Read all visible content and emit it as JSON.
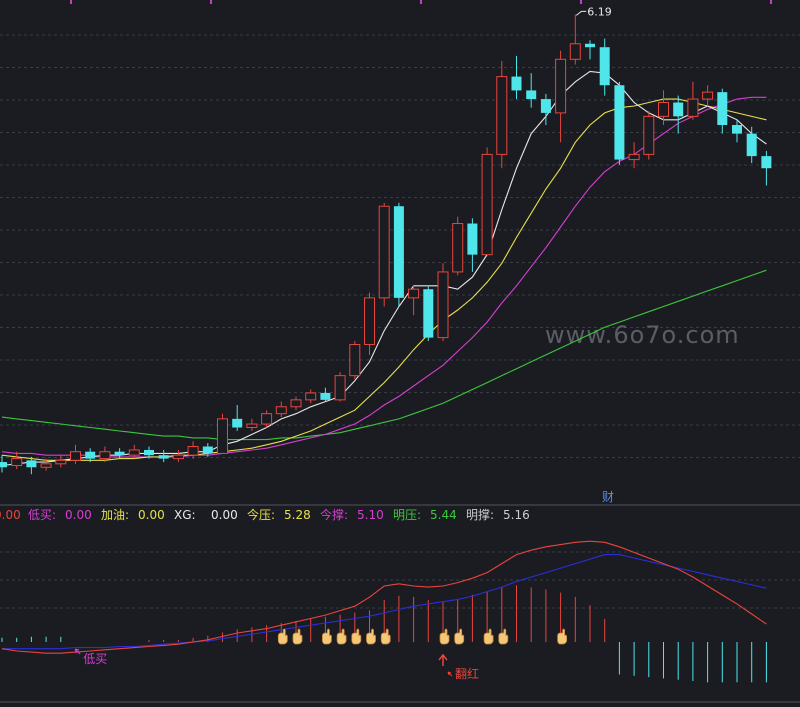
{
  "watermark": "www.6o7o.com",
  "chart_data": [
    {
      "type": "candlestick",
      "name": "",
      "price_range": [
        3.45,
        6.25
      ],
      "high_label": "6.19",
      "event_marker": "财",
      "colors": {
        "up": "#e8453c",
        "down": "#4ee6ea",
        "ma5": "#e8e8e8",
        "ma10": "#e6e04a",
        "ma20": "#d53fd3",
        "ma60": "#3ac73a"
      },
      "candles": [
        [
          3.6,
          3.57,
          3.64,
          3.54
        ],
        [
          3.58,
          3.62,
          3.66,
          3.56
        ],
        [
          3.61,
          3.57,
          3.63,
          3.53
        ],
        [
          3.57,
          3.59,
          3.62,
          3.55
        ],
        [
          3.59,
          3.61,
          3.64,
          3.57
        ],
        [
          3.61,
          3.66,
          3.7,
          3.59
        ],
        [
          3.66,
          3.62,
          3.68,
          3.6
        ],
        [
          3.62,
          3.66,
          3.69,
          3.6
        ],
        [
          3.66,
          3.64,
          3.68,
          3.62
        ],
        [
          3.64,
          3.67,
          3.7,
          3.62
        ],
        [
          3.67,
          3.64,
          3.69,
          3.62
        ],
        [
          3.64,
          3.62,
          3.67,
          3.6
        ],
        [
          3.62,
          3.64,
          3.67,
          3.6
        ],
        [
          3.64,
          3.69,
          3.72,
          3.62
        ],
        [
          3.69,
          3.65,
          3.71,
          3.63
        ],
        [
          3.65,
          3.85,
          3.88,
          3.65
        ],
        [
          3.85,
          3.8,
          3.93,
          3.78
        ],
        [
          3.8,
          3.82,
          3.85,
          3.78
        ],
        [
          3.82,
          3.88,
          3.9,
          3.8
        ],
        [
          3.88,
          3.92,
          3.95,
          3.86
        ],
        [
          3.92,
          3.96,
          3.98,
          3.9
        ],
        [
          3.96,
          4.0,
          4.02,
          3.94
        ],
        [
          4.0,
          3.96,
          4.03,
          3.95
        ],
        [
          3.96,
          4.1,
          4.12,
          3.95
        ],
        [
          4.1,
          4.28,
          4.3,
          4.08
        ],
        [
          4.28,
          4.55,
          4.58,
          4.22
        ],
        [
          4.55,
          5.08,
          5.1,
          4.5
        ],
        [
          5.08,
          4.55,
          5.1,
          4.5
        ],
        [
          4.55,
          4.6,
          4.62,
          4.45
        ],
        [
          4.6,
          4.32,
          4.62,
          4.3
        ],
        [
          4.32,
          4.7,
          4.75,
          4.3
        ],
        [
          4.7,
          4.98,
          5.02,
          4.68
        ],
        [
          4.98,
          4.8,
          5.01,
          4.7
        ],
        [
          4.8,
          5.38,
          5.42,
          4.8
        ],
        [
          5.38,
          5.83,
          5.92,
          5.3
        ],
        [
          5.83,
          5.75,
          5.95,
          5.7
        ],
        [
          5.75,
          5.7,
          5.85,
          5.65
        ],
        [
          5.7,
          5.62,
          5.73,
          5.55
        ],
        [
          5.62,
          5.93,
          5.98,
          5.45
        ],
        [
          5.93,
          6.02,
          6.19,
          5.9
        ],
        [
          6.02,
          6.0,
          6.04,
          5.93
        ],
        [
          6.0,
          5.78,
          6.05,
          5.72
        ],
        [
          5.78,
          5.35,
          5.8,
          5.32
        ],
        [
          5.35,
          5.38,
          5.45,
          5.3
        ],
        [
          5.38,
          5.6,
          5.63,
          5.35
        ],
        [
          5.6,
          5.68,
          5.75,
          5.55
        ],
        [
          5.68,
          5.6,
          5.72,
          5.5
        ],
        [
          5.6,
          5.7,
          5.8,
          5.58
        ],
        [
          5.7,
          5.74,
          5.78,
          5.66
        ],
        [
          5.74,
          5.55,
          5.76,
          5.5
        ],
        [
          5.55,
          5.5,
          5.58,
          5.45
        ],
        [
          5.5,
          5.37,
          5.54,
          5.33
        ],
        [
          5.37,
          5.3,
          5.4,
          5.2
        ]
      ],
      "ma5": [
        3.58,
        3.59,
        3.6,
        3.6,
        3.61,
        3.62,
        3.63,
        3.64,
        3.64,
        3.65,
        3.65,
        3.65,
        3.65,
        3.66,
        3.66,
        3.7,
        3.72,
        3.76,
        3.8,
        3.85,
        3.88,
        3.92,
        3.95,
        3.98,
        4.07,
        4.18,
        4.36,
        4.5,
        4.62,
        4.62,
        4.62,
        4.6,
        4.67,
        4.8,
        5.06,
        5.3,
        5.5,
        5.6,
        5.72,
        5.8,
        5.86,
        5.85,
        5.78,
        5.68,
        5.62,
        5.58,
        5.58,
        5.62,
        5.66,
        5.62,
        5.58,
        5.5,
        5.44
      ],
      "ma10": [
        3.64,
        3.63,
        3.62,
        3.61,
        3.61,
        3.61,
        3.61,
        3.61,
        3.62,
        3.62,
        3.63,
        3.63,
        3.64,
        3.64,
        3.65,
        3.66,
        3.67,
        3.68,
        3.7,
        3.72,
        3.75,
        3.78,
        3.82,
        3.86,
        3.9,
        3.98,
        4.06,
        4.15,
        4.25,
        4.34,
        4.42,
        4.48,
        4.55,
        4.64,
        4.75,
        4.9,
        5.04,
        5.18,
        5.3,
        5.45,
        5.55,
        5.62,
        5.65,
        5.66,
        5.68,
        5.7,
        5.7,
        5.68,
        5.66,
        5.64,
        5.62,
        5.6,
        5.58
      ],
      "ma20": [
        3.66,
        3.65,
        3.65,
        3.64,
        3.64,
        3.64,
        3.64,
        3.63,
        3.63,
        3.63,
        3.63,
        3.63,
        3.63,
        3.64,
        3.64,
        3.65,
        3.66,
        3.67,
        3.68,
        3.7,
        3.72,
        3.74,
        3.76,
        3.79,
        3.82,
        3.87,
        3.93,
        3.98,
        4.04,
        4.1,
        4.16,
        4.24,
        4.32,
        4.41,
        4.52,
        4.62,
        4.73,
        4.84,
        4.96,
        5.08,
        5.19,
        5.28,
        5.34,
        5.38,
        5.44,
        5.5,
        5.56,
        5.6,
        5.64,
        5.67,
        5.7,
        5.71,
        5.71
      ],
      "ma60": [
        3.86,
        3.85,
        3.84,
        3.83,
        3.82,
        3.81,
        3.8,
        3.79,
        3.78,
        3.77,
        3.76,
        3.75,
        3.75,
        3.74,
        3.74,
        3.73,
        3.73,
        3.73,
        3.73,
        3.74,
        3.74,
        3.75,
        3.76,
        3.77,
        3.79,
        3.81,
        3.83,
        3.85,
        3.88,
        3.91,
        3.94,
        3.98,
        4.02,
        4.06,
        4.1,
        4.14,
        4.18,
        4.22,
        4.26,
        4.3,
        4.34,
        4.38,
        4.41,
        4.44,
        4.47,
        4.5,
        4.53,
        4.56,
        4.59,
        4.62,
        4.65,
        4.68,
        4.71
      ]
    },
    {
      "type": "line",
      "name": "indicator",
      "value_range": [
        -60,
        100
      ],
      "legend": [
        {
          "label": "0.00",
          "value": "",
          "color": "#e8453c"
        },
        {
          "label": "低买:",
          "value": "0.00",
          "color": "#d53fd3"
        },
        {
          "label": "加油:",
          "value": "0.00",
          "color": "#e6e04a"
        },
        {
          "label": "XG:",
          "value": "0.00",
          "color": "#e8e8e8"
        },
        {
          "label": "今压:",
          "value": "5.28",
          "color": "#e6e04a"
        },
        {
          "label": "今撑:",
          "value": "5.10",
          "color": "#d53fd3"
        },
        {
          "label": "明压:",
          "value": "5.44",
          "color": "#3ac73a"
        },
        {
          "label": "明撑:",
          "value": "5.16",
          "color": "#cccccc"
        }
      ],
      "line_red": [
        -6,
        -8,
        -9,
        -10,
        -10,
        -9,
        -8,
        -7,
        -6,
        -5,
        -4,
        -3,
        -2,
        0,
        2,
        5,
        8,
        10,
        12,
        15,
        18,
        21,
        24,
        28,
        32,
        40,
        50,
        52,
        50,
        49,
        50,
        53,
        57,
        62,
        70,
        78,
        82,
        85,
        87,
        89,
        90,
        89,
        85,
        80,
        75,
        70,
        65,
        58,
        50,
        42,
        34,
        25,
        16
      ],
      "line_blue": [
        -6,
        -6,
        -6,
        -6,
        -6,
        -5,
        -5,
        -5,
        -4,
        -4,
        -3,
        -2,
        -1,
        0,
        1,
        3,
        5,
        7,
        9,
        11,
        13,
        15,
        17,
        19,
        21,
        23,
        26,
        29,
        32,
        34,
        36,
        38,
        41,
        45,
        49,
        54,
        58,
        62,
        66,
        70,
        74,
        78,
        78,
        75,
        72,
        69,
        66,
        63,
        60,
        57,
        54,
        51,
        48
      ],
      "histogram": [
        4,
        4,
        5,
        5,
        5,
        0,
        0,
        0,
        0,
        0,
        2,
        2,
        2,
        4,
        6,
        9,
        12,
        14,
        16,
        18,
        20,
        22,
        24,
        26,
        28,
        30,
        40,
        44,
        43,
        40,
        38,
        40,
        45,
        48,
        52,
        54,
        52,
        50,
        47,
        43,
        35,
        22,
        -25,
        -26,
        -27,
        -28,
        -29,
        -30,
        -31,
        -31,
        -31,
        -31,
        -31
      ],
      "hand_markers": [
        19,
        20,
        22,
        23,
        24,
        25,
        26,
        30,
        31,
        33,
        34,
        38
      ],
      "annotations": [
        {
          "text": "低买",
          "index": 6,
          "color": "#d53fd3"
        },
        {
          "text": "翻红",
          "index": 30,
          "color": "#e8453c"
        }
      ]
    }
  ]
}
